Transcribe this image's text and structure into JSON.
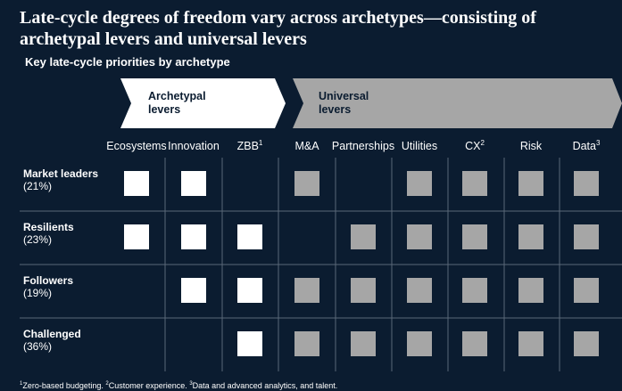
{
  "title": "Late-cycle degrees of freedom vary across archetypes—consisting of archetypal levers and universal levers",
  "subtitle": "Key late-cycle priorities by archetype",
  "groups": {
    "archetypal_line1": "Archetypal",
    "archetypal_line2": "levers",
    "universal_line1": "Universal",
    "universal_line2": "levers"
  },
  "colors": {
    "background": "#0b1c30",
    "archetypal_fill": "#ffffff",
    "universal_fill": "#a6a6a6",
    "grid_line": "#5a6878"
  },
  "footnote": {
    "n1": "1",
    "t1": "Zero-based budgeting. ",
    "n2": "2",
    "t2": "Customer experience. ",
    "n3": "3",
    "t3": "Data and advanced analytics, and talent."
  },
  "chart_data": {
    "type": "table",
    "title": "Late-cycle degrees of freedom vary across archetypes—consisting of archetypal levers and universal levers",
    "subtitle": "Key late-cycle priorities by archetype",
    "columns": [
      {
        "label": "Ecosystems",
        "sup": "",
        "group": "archetypal"
      },
      {
        "label": "Innovation",
        "sup": "",
        "group": "archetypal"
      },
      {
        "label": "ZBB",
        "sup": "1",
        "group": "archetypal"
      },
      {
        "label": "M&A",
        "sup": "",
        "group": "universal"
      },
      {
        "label": "Partnerships",
        "sup": "",
        "group": "universal"
      },
      {
        "label": "Utilities",
        "sup": "",
        "group": "universal"
      },
      {
        "label": "CX",
        "sup": "2",
        "group": "universal"
      },
      {
        "label": "Risk",
        "sup": "",
        "group": "universal"
      },
      {
        "label": "Data",
        "sup": "3",
        "group": "universal"
      }
    ],
    "rows": [
      {
        "name": "Market leaders",
        "share": "(21%)",
        "cells": [
          1,
          1,
          0,
          1,
          0,
          1,
          1,
          1,
          1
        ]
      },
      {
        "name": "Resilients",
        "share": "(23%)",
        "cells": [
          1,
          1,
          1,
          0,
          1,
          1,
          1,
          1,
          1
        ]
      },
      {
        "name": "Followers",
        "share": "(19%)",
        "cells": [
          0,
          1,
          1,
          1,
          1,
          1,
          1,
          1,
          1
        ]
      },
      {
        "name": "Challenged",
        "share": "(36%)",
        "cells": [
          0,
          0,
          1,
          1,
          1,
          1,
          1,
          1,
          1
        ]
      }
    ]
  }
}
